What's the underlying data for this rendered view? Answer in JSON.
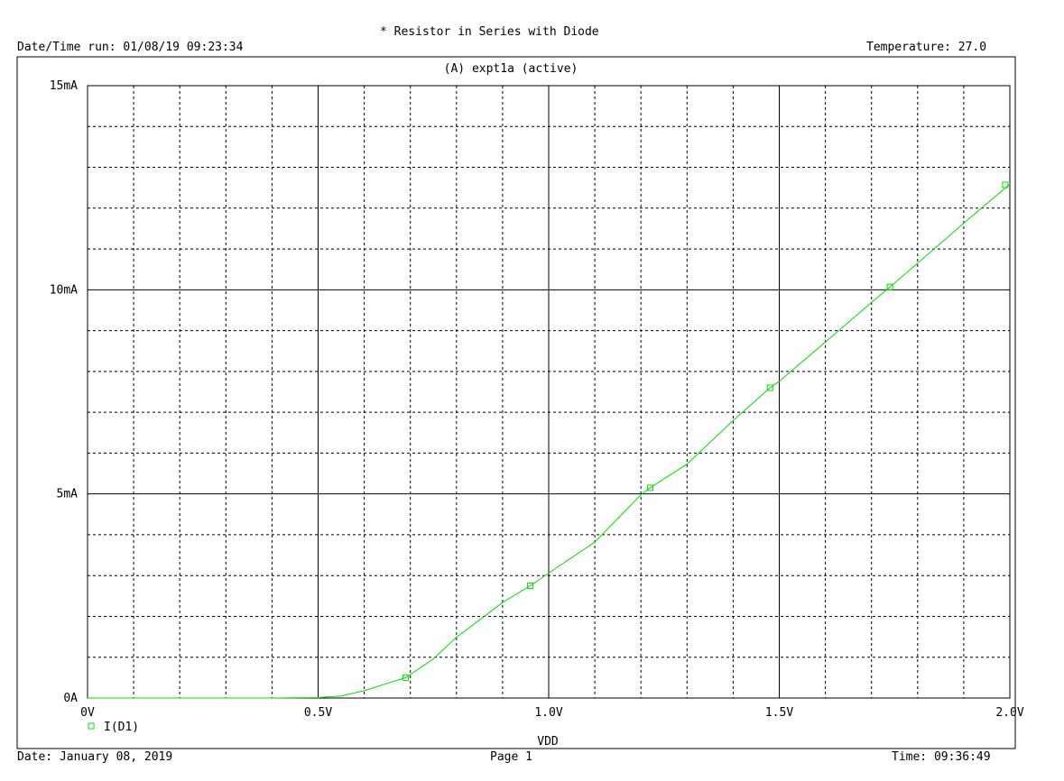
{
  "header": {
    "title": "* Resistor in Series with Diode",
    "datetime_run": "Date/Time run: 01/08/19 09:23:34",
    "temperature": "Temperature: 27.0",
    "plot_title": "(A) expt1a (active)"
  },
  "footer": {
    "date": "Date: January 08, 2019",
    "page": "Page 1",
    "time": "Time: 09:36:49"
  },
  "colors": {
    "trace": "#00e000",
    "grid": "#000000",
    "background": "#ffffff"
  },
  "chart_data": {
    "type": "line",
    "xlabel": "VDD",
    "ylabel": "",
    "xlim": [
      0,
      2.0
    ],
    "ylim": [
      0,
      0.015
    ],
    "grid": true,
    "legend_position": "bottom-left",
    "x_ticks": [
      {
        "value": 0,
        "label": "0V"
      },
      {
        "value": 0.5,
        "label": "0.5V"
      },
      {
        "value": 1.0,
        "label": "1.0V"
      },
      {
        "value": 1.5,
        "label": "1.5V"
      },
      {
        "value": 2.0,
        "label": "2.0V"
      }
    ],
    "y_ticks": [
      {
        "value": 0,
        "label": "0A"
      },
      {
        "value": 0.005,
        "label": "5mA"
      },
      {
        "value": 0.01,
        "label": "10mA"
      },
      {
        "value": 0.015,
        "label": "15mA"
      }
    ],
    "series": [
      {
        "name": "I(D1)",
        "marker": "square",
        "x": [
          0,
          0.1,
          0.2,
          0.3,
          0.4,
          0.5,
          0.55,
          0.6,
          0.65,
          0.69,
          0.75,
          0.8,
          0.9,
          0.96,
          1.0,
          1.1,
          1.2,
          1.22,
          1.3,
          1.4,
          1.48,
          1.5,
          1.6,
          1.7,
          1.74,
          1.8,
          1.9,
          2.0
        ],
        "y": [
          0,
          0,
          0,
          0,
          0,
          1e-05,
          5e-05,
          0.00018,
          0.00036,
          0.0005,
          0.00096,
          0.00149,
          0.00234,
          0.00275,
          0.00306,
          0.00382,
          0.00498,
          0.00515,
          0.00573,
          0.0068,
          0.0076,
          0.00776,
          0.00872,
          0.00969,
          0.01007,
          0.01065,
          0.01163,
          0.01259
        ]
      }
    ],
    "markers": [
      {
        "x": 0.69,
        "y": 0.0005
      },
      {
        "x": 0.96,
        "y": 0.00275
      },
      {
        "x": 1.22,
        "y": 0.00515
      },
      {
        "x": 1.48,
        "y": 0.0076
      },
      {
        "x": 1.74,
        "y": 0.01007
      },
      {
        "x": 1.99,
        "y": 0.01257
      }
    ]
  }
}
